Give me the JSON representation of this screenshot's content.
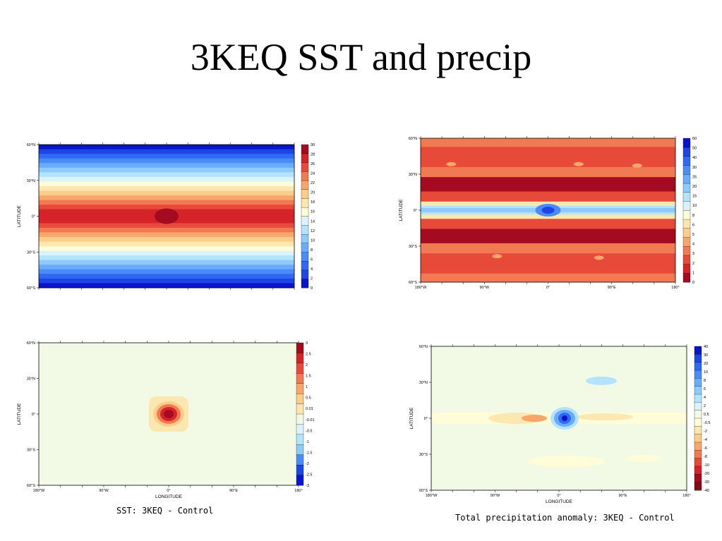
{
  "slide": {
    "title": "3KEQ SST and precip"
  },
  "chart_data": [
    {
      "id": "sst",
      "type": "heatmap",
      "title": "",
      "xlabel": "",
      "ylabel": "LATITUDE",
      "x_ticks": [],
      "y_ticks": [
        "60°N",
        "30°N",
        "0°",
        "30°S",
        "60°S"
      ],
      "ylim": [
        -60,
        60
      ],
      "xlim": [
        -180,
        180
      ],
      "colorbar": {
        "levels": [
          "0",
          "2",
          "4",
          "6",
          "8",
          "10",
          "12",
          "14",
          "16",
          "18",
          "20",
          "22",
          "24",
          "26",
          "28",
          "30"
        ],
        "colors": [
          "#0a14c8",
          "#1e46e6",
          "#2f68f2",
          "#4a8cf7",
          "#6aacfb",
          "#8fcafd",
          "#b4e3fd",
          "#dbf4fb",
          "#fffdd8",
          "#fde7b0",
          "#fbcd8a",
          "#f9a66c",
          "#f27a52",
          "#e84a3a",
          "#d6232a",
          "#a50b20"
        ]
      }
    },
    {
      "id": "precip",
      "type": "heatmap",
      "title": "",
      "xlabel": "",
      "ylabel": "LATITUDE",
      "x_ticks": [
        "180°W",
        "90°W",
        "0°",
        "90°E",
        "180°"
      ],
      "y_ticks": [
        "60°N",
        "30°N",
        "0°",
        "30°S",
        "60°S"
      ],
      "ylim": [
        -60,
        60
      ],
      "xlim": [
        -180,
        180
      ],
      "colorbar": {
        "levels": [
          "0",
          "1",
          "2",
          "3",
          "4",
          "5",
          "6",
          "8",
          "10",
          "15",
          "20",
          "25",
          "30",
          "40",
          "50",
          "60"
        ],
        "colors": [
          "#a50b20",
          "#d6232a",
          "#e84a3a",
          "#f27a52",
          "#f9a66c",
          "#fbcd8a",
          "#fde7b0",
          "#fffdd8",
          "#dbf4fb",
          "#b4e3fd",
          "#8fcafd",
          "#6aacfb",
          "#4a8cf7",
          "#2f68f2",
          "#1e46e6",
          "#0a14c8"
        ]
      }
    },
    {
      "id": "sst_anom",
      "type": "heatmap",
      "title": "SST: 3KEQ - Control",
      "xlabel": "LONGITUDE",
      "ylabel": "LATITUDE",
      "x_ticks": [
        "180°W",
        "90°W",
        "0°",
        "90°E",
        "180°"
      ],
      "y_ticks": [
        "60°N",
        "30°N",
        "0°",
        "30°S",
        "60°S"
      ],
      "ylim": [
        -60,
        60
      ],
      "xlim": [
        -180,
        180
      ],
      "colorbar": {
        "levels": [
          "3",
          "2.5",
          "2",
          "1.5",
          "1",
          "0.5",
          "0.01",
          "-0.01",
          "-0.5",
          "-1",
          "-1.5",
          "-2",
          "-2.5",
          "-3"
        ],
        "colors": [
          "#a50b20",
          "#d6232a",
          "#e84a3a",
          "#f27a52",
          "#f9a66c",
          "#fbcd8a",
          "#fde7b0",
          "#f2fae6",
          "#dbf4fb",
          "#b4e3fd",
          "#8fcafd",
          "#4a8cf7",
          "#1e46e6",
          "#0a14c8"
        ]
      }
    },
    {
      "id": "precip_anom",
      "type": "heatmap",
      "title": "Total precipitation anomaly: 3KEQ - Control",
      "xlabel": "LONGITUDE",
      "ylabel": "LATITUDE",
      "x_ticks": [
        "180°W",
        "90°W",
        "0°",
        "90°E",
        "180°"
      ],
      "y_ticks": [
        "60°N",
        "30°N",
        "0°",
        "30°S",
        "60°S"
      ],
      "ylim": [
        -60,
        60
      ],
      "xlim": [
        -180,
        180
      ],
      "colorbar": {
        "levels": [
          "40",
          "30",
          "20",
          "10",
          "8",
          "6",
          "4",
          "2",
          "0.5",
          "-0.5",
          "-2",
          "-4",
          "-6",
          "-8",
          "-10",
          "-20",
          "-30",
          "-40"
        ],
        "colors": [
          "#0a14c8",
          "#1e46e6",
          "#2f68f2",
          "#4a8cf7",
          "#6aacfb",
          "#8fcafd",
          "#b4e3fd",
          "#dbf4fb",
          "#f2fae6",
          "#fffdd8",
          "#fde7b0",
          "#fbcd8a",
          "#f9a66c",
          "#f27a52",
          "#e84a3a",
          "#d6232a",
          "#a50b20",
          "#8a0616"
        ]
      }
    }
  ]
}
